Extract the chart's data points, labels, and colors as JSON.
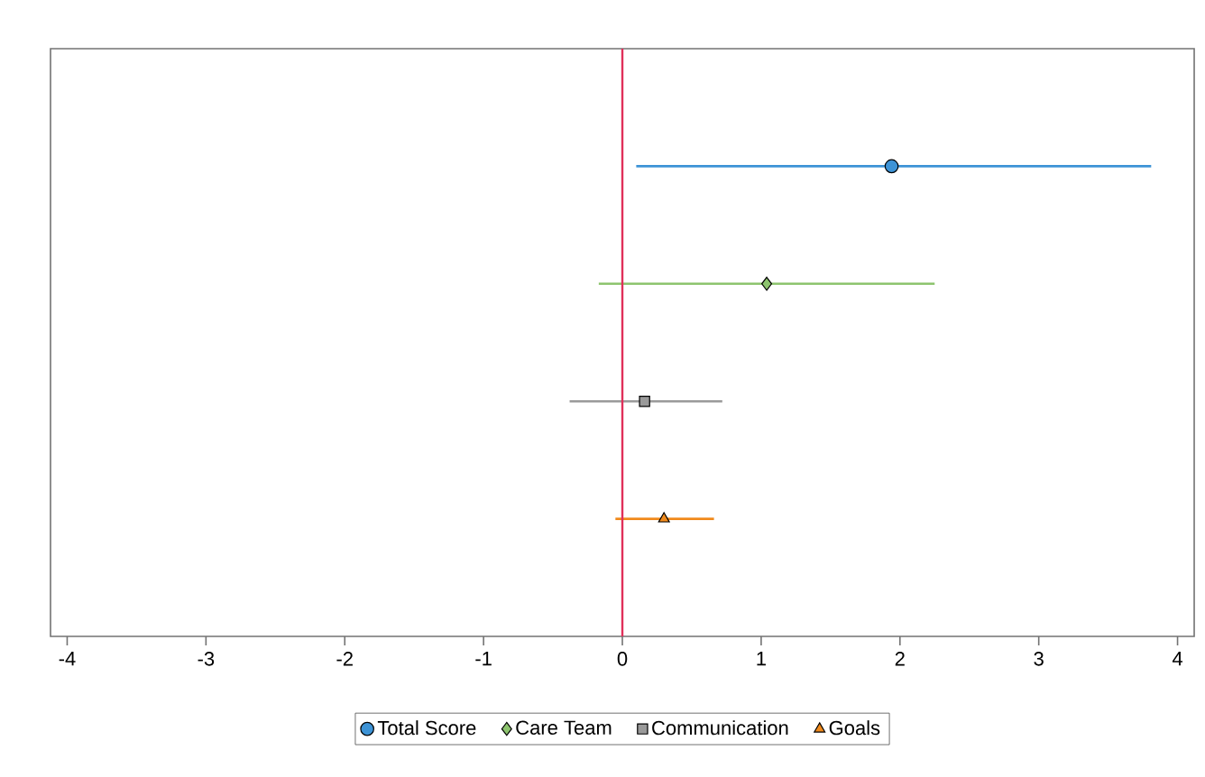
{
  "chart_data": {
    "type": "scatter",
    "orientation": "horizontal",
    "categories": [
      null,
      null,
      null,
      null
    ],
    "series": [
      {
        "name": "Total Score",
        "color": "#3d93d6",
        "marker": "circle",
        "values": [
          1.94,
          null,
          null,
          null
        ],
        "errors": [
          [
            0.1,
            3.81
          ],
          null,
          null,
          null
        ]
      },
      {
        "name": "Care Team",
        "color": "#8dc46e",
        "marker": "diamond",
        "values": [
          null,
          1.04,
          null,
          null
        ],
        "errors": [
          null,
          [
            -0.17,
            2.25
          ],
          null,
          null
        ]
      },
      {
        "name": "Communication",
        "color": "#9a9a9a",
        "marker": "square",
        "values": [
          null,
          null,
          0.16,
          null
        ],
        "errors": [
          null,
          null,
          [
            -0.38,
            0.72
          ],
          null
        ]
      },
      {
        "name": "Goals",
        "color": "#f08a1c",
        "marker": "triangle",
        "values": [
          null,
          null,
          null,
          0.3
        ],
        "errors": [
          null,
          null,
          null,
          [
            -0.05,
            0.66
          ]
        ]
      }
    ],
    "xlim": [
      -4.12,
      4.12
    ],
    "xticks": [
      -4,
      -3,
      -2,
      -1,
      0,
      1,
      2,
      3,
      4
    ],
    "ref_lines": [
      {
        "axis": "x",
        "value": 0,
        "color": "#e0305a"
      }
    ],
    "grid": false,
    "legend": "bottom"
  }
}
